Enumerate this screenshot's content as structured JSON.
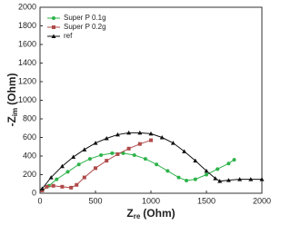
{
  "chart_data": {
    "type": "scatter-line",
    "xlabel_parts": [
      "Z",
      "re",
      "(Ohm)"
    ],
    "ylabel_parts": [
      "-Z",
      "im",
      "(Ohm)"
    ],
    "xlim": [
      0,
      2000
    ],
    "xticks": [
      0,
      500,
      1000,
      1500,
      2000
    ],
    "ylim": [
      0,
      2000
    ],
    "yticks": [
      0,
      200,
      400,
      600,
      800,
      1000,
      1200,
      1400,
      1600,
      1800,
      2000
    ],
    "legend": "upper-left",
    "series": [
      {
        "name": "Super P 0.1g",
        "color": "#2db34a",
        "marker": "circle",
        "x": [
          20,
          80,
          150,
          250,
          350,
          450,
          550,
          650,
          750,
          850,
          950,
          1050,
          1150,
          1250,
          1320,
          1400,
          1500,
          1600,
          1700,
          1750
        ],
        "values": [
          30,
          80,
          150,
          230,
          310,
          370,
          410,
          430,
          430,
          410,
          370,
          310,
          240,
          170,
          137,
          150,
          200,
          260,
          320,
          360
        ]
      },
      {
        "name": "Super P 0.2g",
        "color": "#b04a4a",
        "marker": "square",
        "x": [
          20,
          60,
          120,
          200,
          280,
          330,
          400,
          500,
          600,
          700,
          800,
          900,
          1000
        ],
        "values": [
          30,
          70,
          80,
          70,
          60,
          90,
          170,
          270,
          350,
          420,
          480,
          530,
          570
        ]
      },
      {
        "name": "ref",
        "color": "#111111",
        "marker": "triangle",
        "x": [
          20,
          100,
          200,
          300,
          400,
          500,
          600,
          700,
          800,
          900,
          1000,
          1100,
          1200,
          1300,
          1400,
          1500,
          1580,
          1620,
          1700,
          1800,
          1900,
          2000
        ],
        "values": [
          50,
          170,
          290,
          390,
          470,
          540,
          590,
          630,
          650,
          650,
          640,
          600,
          540,
          450,
          350,
          240,
          160,
          130,
          140,
          150,
          150,
          150
        ]
      }
    ]
  }
}
